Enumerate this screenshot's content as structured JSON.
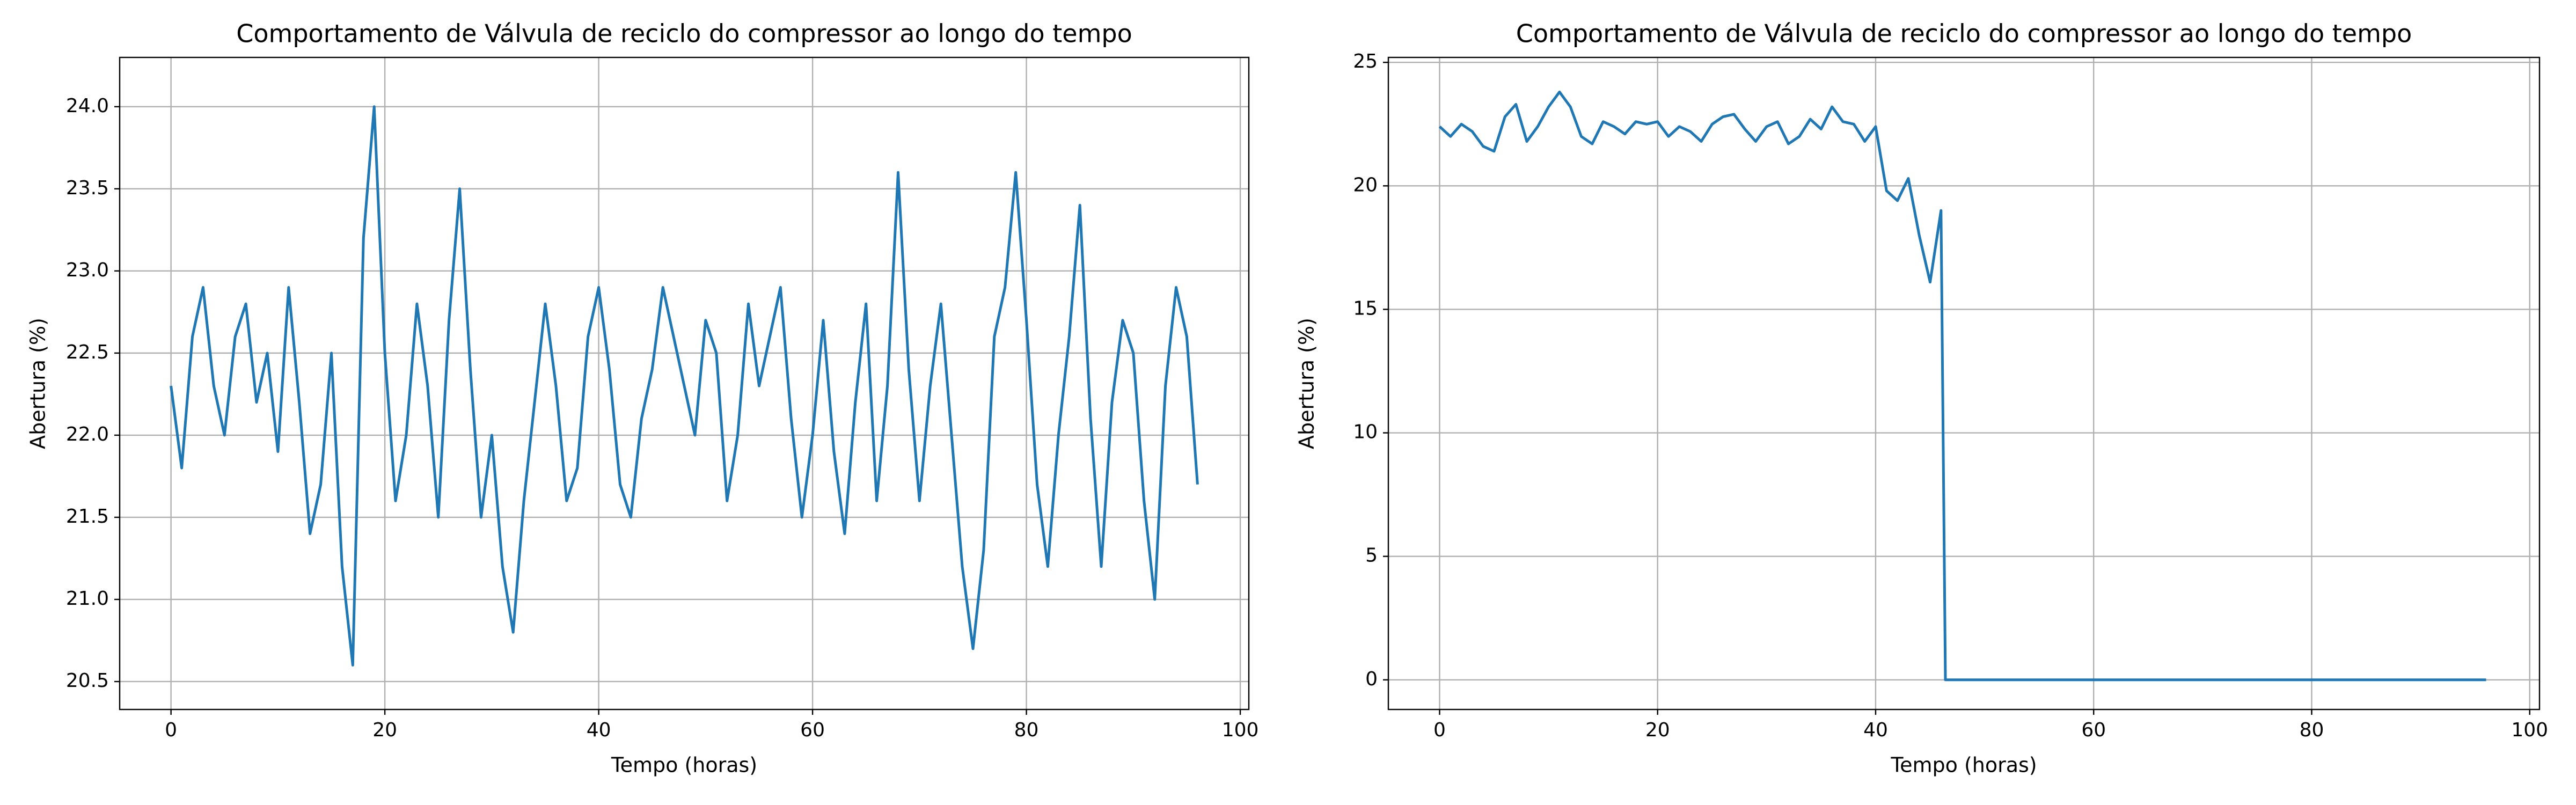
{
  "chart_data": [
    {
      "type": "line",
      "title": "Comportamento de Válvula de reciclo do compressor ao longo do tempo",
      "xlabel": "Tempo (horas)",
      "ylabel": "Abertura (%)",
      "color": "#1f77b4",
      "grid": true,
      "xlim": [
        -4.8,
        100.8
      ],
      "ylim": [
        20.33,
        24.3
      ],
      "xticks": [
        0,
        20,
        40,
        60,
        80,
        100
      ],
      "yticks": [
        20.5,
        {
          "value": 21,
          "label": "21.0"
        },
        21.5,
        {
          "value": 22,
          "label": "22.0"
        },
        22.5,
        {
          "value": 23,
          "label": "23.0"
        },
        23.5,
        {
          "value": 24,
          "label": "24.0"
        }
      ],
      "x": [
        0,
        1,
        2,
        3,
        4,
        5,
        6,
        7,
        8,
        9,
        10,
        11,
        12,
        13,
        14,
        15,
        16,
        17,
        18,
        19,
        20,
        21,
        22,
        23,
        24,
        25,
        26,
        27,
        28,
        29,
        30,
        31,
        32,
        33,
        34,
        35,
        36,
        37,
        38,
        39,
        40,
        41,
        42,
        43,
        44,
        45,
        46,
        47,
        48,
        49,
        50,
        51,
        52,
        53,
        54,
        55,
        56,
        57,
        58,
        59,
        60,
        61,
        62,
        63,
        64,
        65,
        66,
        67,
        68,
        69,
        70,
        71,
        72,
        73,
        74,
        75,
        76,
        77,
        78,
        79,
        80,
        81,
        82,
        83,
        84,
        85,
        86,
        87,
        88,
        89,
        90,
        91,
        92,
        93,
        94,
        95,
        96
      ],
      "values": [
        22.3,
        21.8,
        22.6,
        22.9,
        22.3,
        22.0,
        22.6,
        22.8,
        22.2,
        22.5,
        21.9,
        22.9,
        22.2,
        21.4,
        21.7,
        22.5,
        21.2,
        20.6,
        23.2,
        24.0,
        22.5,
        21.6,
        22.0,
        22.8,
        22.3,
        21.5,
        22.7,
        23.5,
        22.4,
        21.5,
        22.0,
        21.2,
        20.8,
        21.6,
        22.2,
        22.8,
        22.3,
        21.6,
        21.8,
        22.6,
        22.9,
        22.4,
        21.7,
        21.5,
        22.1,
        22.4,
        22.9,
        22.6,
        22.3,
        22.0,
        22.7,
        22.5,
        21.6,
        22.0,
        22.8,
        22.3,
        22.6,
        22.9,
        22.1,
        21.5,
        22.0,
        22.7,
        21.9,
        21.4,
        22.2,
        22.8,
        21.6,
        22.3,
        23.6,
        22.4,
        21.6,
        22.3,
        22.8,
        22.0,
        21.2,
        20.7,
        21.3,
        22.6,
        22.9,
        23.6,
        22.7,
        21.7,
        21.2,
        22.0,
        22.6,
        23.4,
        22.1,
        21.2,
        22.2,
        22.7,
        22.5,
        21.6,
        21.0,
        22.3,
        22.9,
        22.6,
        21.7
      ]
    },
    {
      "type": "line",
      "title": "Comportamento de Válvula de reciclo do compressor ao longo do tempo",
      "xlabel": "Tempo (horas)",
      "ylabel": "Abertura (%)",
      "color": "#1f77b4",
      "grid": true,
      "xlim": [
        -4.7,
        100.9
      ],
      "ylim": [
        -1.2,
        25.2
      ],
      "xticks": [
        0,
        20,
        40,
        60,
        80,
        100
      ],
      "yticks": [
        0,
        5,
        10,
        15,
        20,
        25
      ],
      "x": [
        0,
        1,
        2,
        3,
        4,
        5,
        6,
        7,
        8,
        9,
        10,
        11,
        12,
        13,
        14,
        15,
        16,
        17,
        18,
        19,
        20,
        21,
        22,
        23,
        24,
        25,
        26,
        27,
        28,
        29,
        30,
        31,
        32,
        33,
        34,
        35,
        36,
        37,
        38,
        39,
        40,
        41,
        42,
        43,
        44,
        45,
        46,
        46.4,
        96
      ],
      "values": [
        22.4,
        22.0,
        22.5,
        22.2,
        21.6,
        21.4,
        22.8,
        23.3,
        21.8,
        22.4,
        23.2,
        23.8,
        23.2,
        22.0,
        21.7,
        22.6,
        22.4,
        22.1,
        22.6,
        22.5,
        22.6,
        22.0,
        22.4,
        22.2,
        21.8,
        22.5,
        22.8,
        22.9,
        22.3,
        21.8,
        22.4,
        22.6,
        21.7,
        22.0,
        22.7,
        22.3,
        23.2,
        22.6,
        22.5,
        21.8,
        22.4,
        19.8,
        19.4,
        20.3,
        18.0,
        16.1,
        19.0,
        0,
        0
      ]
    }
  ]
}
